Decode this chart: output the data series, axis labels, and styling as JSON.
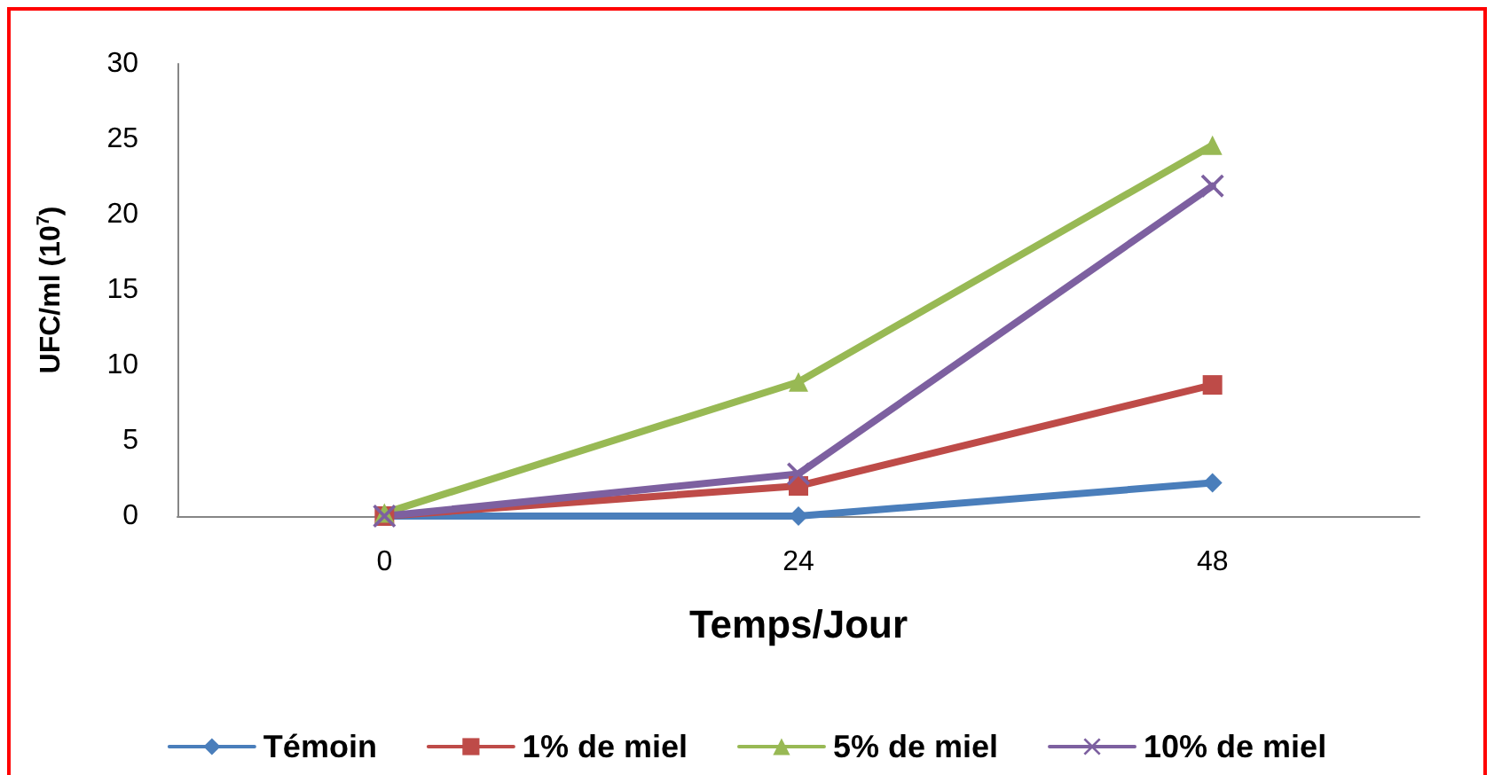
{
  "chart_data": {
    "type": "line",
    "xlabel": "Temps/Jour",
    "ylabel": "UFC/ml (10$^{7}$)",
    "categories": [
      "0",
      "24",
      "48"
    ],
    "series": [
      {
        "name": "Témoin",
        "color": "#4a7ebb",
        "marker": "diamond",
        "values": [
          0,
          0,
          2.2
        ]
      },
      {
        "name": "1% de miel",
        "color": "#be4b48",
        "marker": "square",
        "values": [
          0,
          2,
          8.7
        ]
      },
      {
        "name": "5% de miel",
        "color": "#98b954",
        "marker": "triangle",
        "values": [
          0.2,
          8.9,
          24.6
        ]
      },
      {
        "name": "10% de miel",
        "color": "#7d60a0",
        "marker": "cross",
        "values": [
          0,
          2.8,
          21.9
        ]
      }
    ],
    "ylim": [
      0,
      30
    ],
    "yticks": [
      0,
      5,
      10,
      15,
      20,
      25,
      30
    ],
    "grid": false,
    "legend": "bottom",
    "line_style": "solid"
  }
}
